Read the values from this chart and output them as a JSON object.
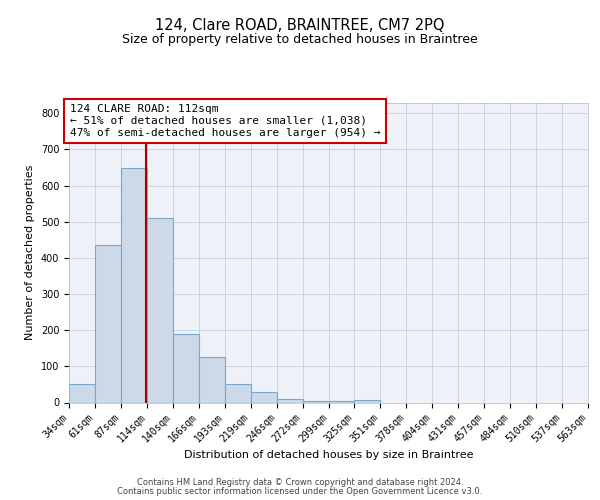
{
  "title": "124, Clare ROAD, BRAINTREE, CM7 2PQ",
  "subtitle": "Size of property relative to detached houses in Braintree",
  "xlabel": "Distribution of detached houses by size in Braintree",
  "ylabel": "Number of detached properties",
  "bar_color": "#ccd9e8",
  "bar_edge_color": "#7aa8cc",
  "annotation_line1": "124 CLARE ROAD: 112sqm",
  "annotation_line2": "← 51% of detached houses are smaller (1,038)",
  "annotation_line3": "47% of semi-detached houses are larger (954) →",
  "annotation_box_color": "#cc0000",
  "property_line_x": 112,
  "property_line_color": "#aa0000",
  "bin_edges": [
    34,
    61,
    87,
    114,
    140,
    166,
    193,
    219,
    246,
    272,
    299,
    325,
    351,
    378,
    404,
    431,
    457,
    484,
    510,
    537,
    563
  ],
  "bar_heights": [
    50,
    435,
    650,
    510,
    190,
    125,
    50,
    28,
    10,
    5,
    5,
    8,
    0,
    0,
    0,
    0,
    0,
    0,
    0,
    0
  ],
  "tick_labels": [
    "34sqm",
    "61sqm",
    "87sqm",
    "114sqm",
    "140sqm",
    "166sqm",
    "193sqm",
    "219sqm",
    "246sqm",
    "272sqm",
    "299sqm",
    "325sqm",
    "351sqm",
    "378sqm",
    "404sqm",
    "431sqm",
    "457sqm",
    "484sqm",
    "510sqm",
    "537sqm",
    "563sqm"
  ],
  "ylim": [
    0,
    830
  ],
  "yticks": [
    0,
    100,
    200,
    300,
    400,
    500,
    600,
    700,
    800
  ],
  "grid_color": "#c5cfe0",
  "background_color": "#eef2f8",
  "footer_line1": "Contains HM Land Registry data © Crown copyright and database right 2024.",
  "footer_line2": "Contains public sector information licensed under the Open Government Licence v3.0.",
  "title_fontsize": 10.5,
  "subtitle_fontsize": 9,
  "axis_label_fontsize": 8,
  "tick_fontsize": 7,
  "footer_fontsize": 6
}
